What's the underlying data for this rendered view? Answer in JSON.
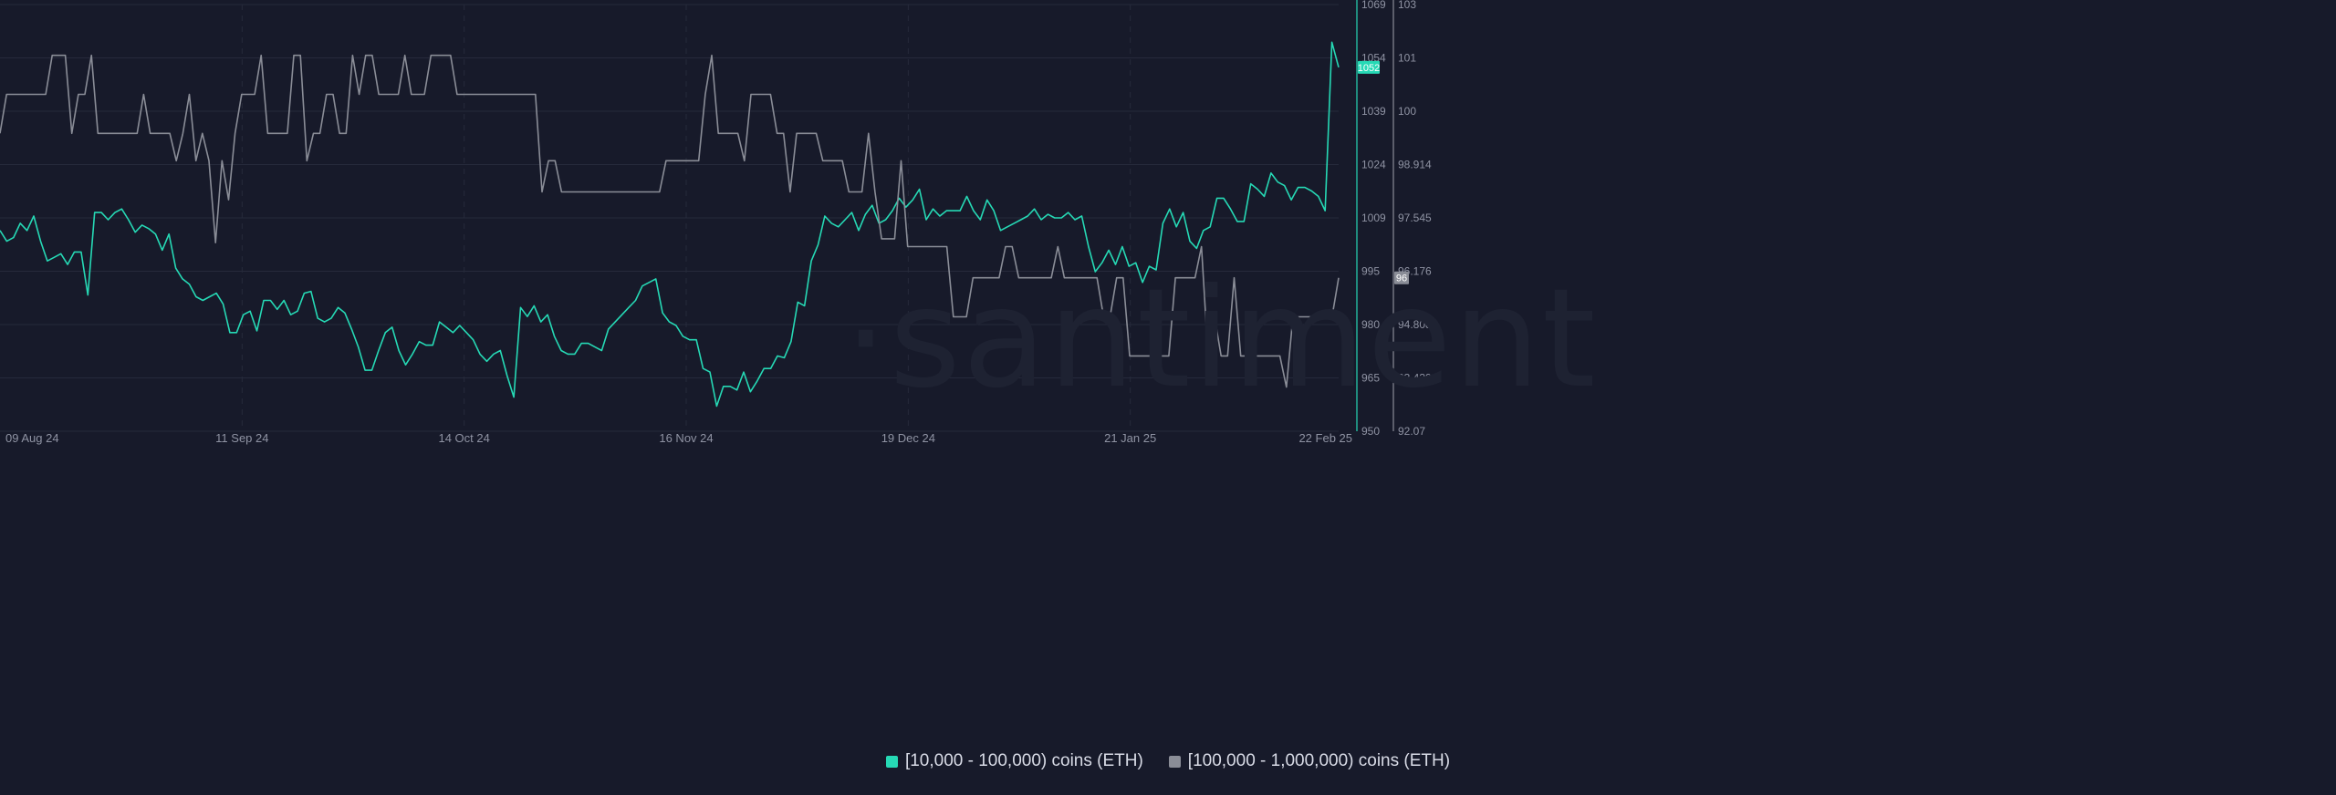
{
  "watermark": "·santiment",
  "colors": {
    "background": "#171a2a",
    "series_a": "#26d9b5",
    "series_b": "#8a8d97",
    "grid": "#262a3b",
    "axis_text": "#8f93a3"
  },
  "legend": {
    "items": [
      {
        "label": "[10,000 - 100,000) coins (ETH)",
        "color": "#26d9b5"
      },
      {
        "label": "[100,000  - 1,000,000) coins (ETH)",
        "color": "#8a8d97"
      }
    ]
  },
  "chart_data": {
    "type": "line",
    "title": "",
    "x_tick_labels": [
      "09 Aug 24",
      "11 Sep 24",
      "14 Oct 24",
      "16 Nov 24",
      "19 Dec 24",
      "21 Jan 25",
      "22 Feb 25"
    ],
    "y_axis_left": {
      "ticks": [
        "1069",
        "1054",
        "1039",
        "1024",
        "1009",
        "995",
        "980",
        "965",
        "950"
      ],
      "range": [
        950,
        1069
      ]
    },
    "y_axis_right": {
      "ticks": [
        "103",
        "101",
        "100",
        "98.914",
        "97.545",
        "96.176",
        "94.808",
        "93.439",
        "92.07"
      ],
      "range": [
        92.07,
        103
      ]
    },
    "last_value_badges": {
      "series_a": "1052",
      "series_b": "96"
    },
    "grid": true,
    "legend_position": "bottom-center",
    "series": [
      {
        "name": "[10,000 - 100,000) coins (ETH)",
        "axis": "left",
        "values": [
          1006.0,
          1003.0,
          1004.0,
          1008.0,
          1006.0,
          1010.0,
          1003.0,
          997.5,
          998.5,
          999.5,
          996.5,
          1000.0,
          1000.0,
          988.0,
          1011.0,
          1011.0,
          1009.0,
          1011.0,
          1012.0,
          1009.0,
          1005.5,
          1007.5,
          1006.5,
          1005.0,
          1000.5,
          1005.0,
          995.5,
          992.5,
          991.0,
          987.5,
          986.5,
          987.5,
          988.5,
          985.5,
          977.5,
          977.5,
          982.5,
          983.5,
          978.0,
          986.5,
          986.5,
          984.0,
          986.5,
          982.5,
          983.5,
          988.5,
          989.0,
          981.5,
          980.5,
          981.5,
          984.5,
          983.0,
          978.5,
          973.5,
          967.0,
          967.0,
          972.5,
          977.5,
          979.0,
          972.5,
          968.5,
          971.5,
          975.0,
          974.0,
          974.0,
          980.5,
          979.0,
          977.5,
          979.5,
          977.5,
          975.5,
          971.5,
          969.5,
          971.5,
          972.5,
          965.5,
          959.5,
          984.5,
          982.0,
          985.0,
          980.5,
          982.5,
          976.5,
          972.5,
          971.5,
          971.5,
          974.5,
          974.5,
          973.5,
          972.5,
          978.5,
          980.5,
          982.5,
          984.5,
          986.5,
          990.5,
          991.5,
          992.5,
          983.0,
          980.5,
          979.5,
          976.5,
          975.5,
          975.5,
          967.5,
          966.5,
          957.0,
          962.5,
          962.5,
          961.5,
          966.5,
          961.0,
          964.0,
          967.5,
          967.5,
          971.0,
          970.5,
          975.0,
          986.0,
          985.0,
          997.5,
          1002.0,
          1010.0,
          1008.0,
          1007.0,
          1009.0,
          1011.0,
          1006.0,
          1010.5,
          1013.0,
          1008.0,
          1009.0,
          1011.5,
          1015.0,
          1012.5,
          1014.5,
          1017.5,
          1009.0,
          1012.0,
          1010.0,
          1011.5,
          1011.5,
          1011.5,
          1015.5,
          1011.5,
          1009.0,
          1014.5,
          1011.5,
          1006.0,
          1007.0,
          1008.0,
          1009.0,
          1010.0,
          1012.0,
          1009.0,
          1010.5,
          1009.5,
          1009.5,
          1011.0,
          1009.0,
          1010.0,
          1001.5,
          994.5,
          997.0,
          1000.5,
          996.5,
          1001.5,
          996.0,
          997.0,
          991.5,
          996.0,
          995.0,
          1008.0,
          1012.0,
          1007.0,
          1011.0,
          1003.0,
          1001.0,
          1006.0,
          1007.0,
          1015.0,
          1015.0,
          1012.0,
          1008.5,
          1008.5,
          1019.0,
          1017.5,
          1015.5,
          1022.0,
          1019.5,
          1018.5,
          1014.5,
          1018.0,
          1018.0,
          1017.0,
          1015.5,
          1011.5,
          1058.5,
          1051.5
        ]
      },
      {
        "name": "[100,000  - 1,000,000) coins (ETH)",
        "axis": "right",
        "values": [
          99.7,
          100.7,
          100.7,
          100.7,
          100.7,
          100.7,
          100.7,
          100.7,
          101.7,
          101.7,
          101.7,
          99.7,
          100.7,
          100.7,
          101.7,
          99.7,
          99.7,
          99.7,
          99.7,
          99.7,
          99.7,
          99.7,
          100.7,
          99.7,
          99.7,
          99.7,
          99.7,
          99.0,
          99.7,
          100.7,
          99.0,
          99.7,
          99.0,
          96.9,
          99.0,
          98.0,
          99.7,
          100.7,
          100.7,
          100.7,
          101.7,
          99.7,
          99.7,
          99.7,
          99.7,
          101.7,
          101.7,
          99.0,
          99.7,
          99.7,
          100.7,
          100.7,
          99.7,
          99.7,
          101.7,
          100.7,
          101.7,
          101.7,
          100.7,
          100.7,
          100.7,
          100.7,
          101.7,
          100.7,
          100.7,
          100.7,
          101.7,
          101.7,
          101.7,
          101.7,
          100.7,
          100.7,
          100.7,
          100.7,
          100.7,
          100.7,
          100.7,
          100.7,
          100.7,
          100.7,
          100.7,
          100.7,
          100.7,
          98.2,
          99.0,
          99.0,
          98.2,
          98.2,
          98.2,
          98.2,
          98.2,
          98.2,
          98.2,
          98.2,
          98.2,
          98.2,
          98.2,
          98.2,
          98.2,
          98.2,
          98.2,
          98.2,
          99.0,
          99.0,
          99.0,
          99.0,
          99.0,
          99.0,
          100.7,
          101.7,
          99.7,
          99.7,
          99.7,
          99.7,
          99.0,
          100.7,
          100.7,
          100.7,
          100.7,
          99.7,
          99.7,
          98.2,
          99.7,
          99.7,
          99.7,
          99.7,
          99.0,
          99.0,
          99.0,
          99.0,
          98.2,
          98.2,
          98.2,
          99.7,
          98.2,
          97.0,
          97.0,
          97.0,
          99.0,
          96.8,
          96.8,
          96.8,
          96.8,
          96.8,
          96.8,
          96.8,
          95.0,
          95.0,
          95.0,
          96.0,
          96.0,
          96.0,
          96.0,
          96.0,
          96.8,
          96.8,
          96.0,
          96.0,
          96.0,
          96.0,
          96.0,
          96.0,
          96.8,
          96.0,
          96.0,
          96.0,
          96.0,
          96.0,
          96.0,
          95.0,
          95.0,
          96.0,
          96.0,
          94.0,
          94.0,
          94.0,
          94.0,
          94.0,
          94.0,
          94.0,
          96.0,
          96.0,
          96.0,
          96.0,
          96.8,
          94.0,
          95.0,
          94.0,
          94.0,
          96.0,
          94.0,
          94.0,
          94.0,
          94.0,
          94.0,
          94.0,
          94.0,
          93.2,
          95.0,
          95.0,
          95.0,
          95.0,
          95.0,
          95.0,
          95.0,
          96.0
        ]
      }
    ]
  }
}
